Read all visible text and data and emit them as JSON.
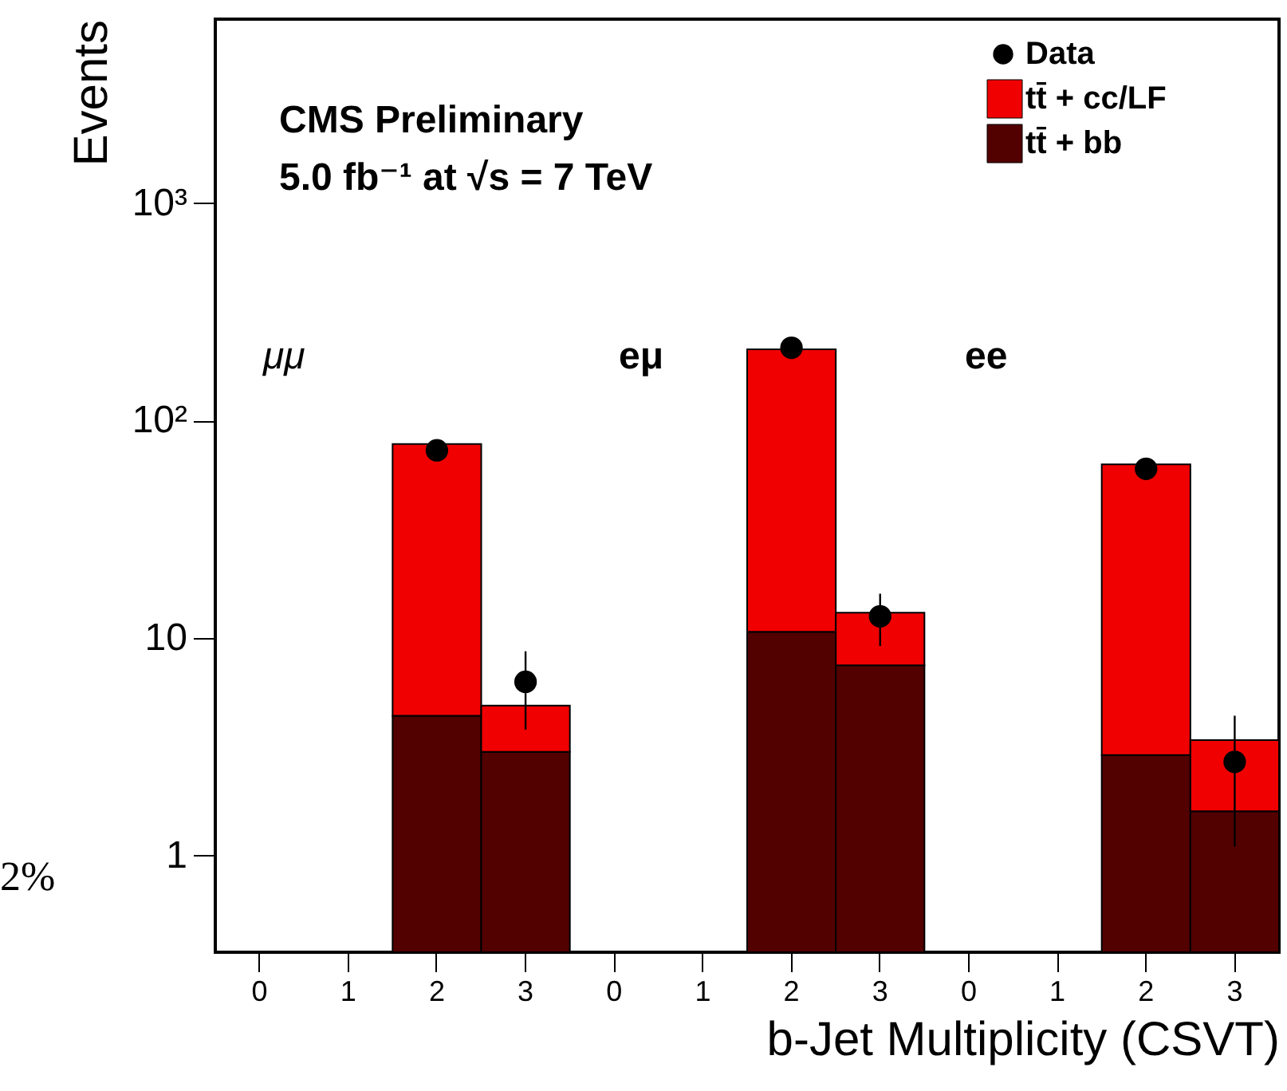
{
  "chart_data": {
    "type": "bar",
    "stacked": true,
    "log": "y",
    "xlabel": "b-Jet Multiplicity (CSVT)",
    "ylabel": "Events",
    "categories": [
      "0",
      "1",
      "2",
      "3",
      "0",
      "1",
      "2",
      "3",
      "0",
      "1",
      "2",
      "3"
    ],
    "ylim": [
      0.36,
      7000
    ],
    "yticks": [
      1,
      10,
      {
        "value": 100,
        "label": "10²"
      },
      {
        "value": 1000,
        "label": "10³"
      }
    ],
    "series": [
      {
        "name": "tt̄ + bb",
        "color": "#520000",
        "values": [
          null,
          null,
          4.4,
          3.0,
          null,
          null,
          10.7,
          7.5,
          null,
          null,
          2.9,
          1.6
        ]
      },
      {
        "name": "tt̄ + cc/LF",
        "color": "#f00000",
        "values": [
          null,
          null,
          73.6,
          1.9,
          null,
          null,
          202,
          5.6,
          null,
          null,
          60,
          1.8
        ]
      },
      {
        "name": "Data",
        "type": "scatter",
        "color": "#000000",
        "marker": "circle",
        "values": [
          null,
          null,
          73,
          6.3,
          null,
          null,
          216,
          12.6,
          null,
          null,
          60,
          2.7
        ],
        "errors": [
          null,
          null,
          null,
          [
            3.8,
            8.7
          ],
          null,
          null,
          null,
          [
            9.2,
            16
          ],
          null,
          null,
          null,
          [
            1.1,
            4.4
          ]
        ]
      }
    ],
    "legend": "top right",
    "grid": false,
    "annotations": [
      "CMS Preliminary",
      "5.0 fb⁻¹ at √s = 7 TeV",
      "μμ",
      "eμ",
      "ee",
      "2%"
    ]
  }
}
